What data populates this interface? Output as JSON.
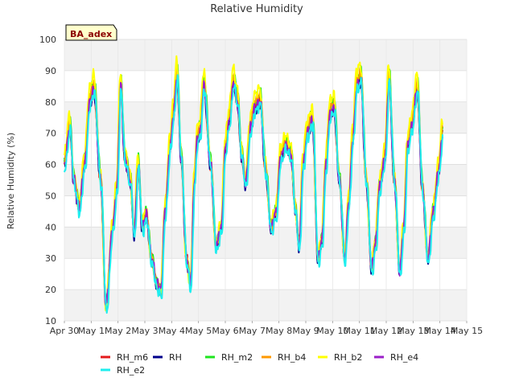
{
  "chart_data": {
    "type": "line",
    "title": "Relative Humidity",
    "ylabel": "Relative Humidity (%)",
    "xlabel": "",
    "ylim": [
      10,
      100
    ],
    "yticks": [
      10,
      20,
      30,
      40,
      50,
      60,
      70,
      80,
      90,
      100
    ],
    "xlim": [
      0,
      15
    ],
    "xticks": [
      0,
      1,
      2,
      3,
      4,
      5,
      6,
      7,
      8,
      9,
      10,
      11,
      12,
      13,
      14,
      15
    ],
    "xtick_labels": [
      "Apr 30",
      "May 1",
      "May 2",
      "May 3",
      "May 4",
      "May 5",
      "May 6",
      "May 7",
      "May 8",
      "May 9",
      "May 10",
      "May 11",
      "May 12",
      "May 13",
      "May 14",
      "May 15"
    ],
    "band_fill": "#f2f2f2",
    "grid": true,
    "legend_position": "bottom",
    "site_label": "BA_adex",
    "base_profile": {
      "x": [
        0.0,
        0.2,
        0.35,
        0.55,
        0.75,
        0.95,
        1.1,
        1.35,
        1.55,
        1.8,
        1.95,
        2.1,
        2.25,
        2.45,
        2.6,
        2.75,
        2.9,
        3.05,
        3.25,
        3.45,
        3.6,
        3.75,
        3.95,
        4.05,
        4.2,
        4.35,
        4.55,
        4.7,
        4.85,
        4.95,
        5.05,
        5.2,
        5.45,
        5.65,
        5.85,
        6.0,
        6.15,
        6.3,
        6.45,
        6.6,
        6.75,
        6.95,
        7.1,
        7.3,
        7.5,
        7.7,
        7.9,
        8.05,
        8.25,
        8.45,
        8.6,
        8.75,
        8.9,
        9.05,
        9.25,
        9.45,
        9.6,
        9.75,
        9.9,
        10.05,
        10.25,
        10.45,
        10.6,
        10.75,
        10.9,
        11.05,
        11.25,
        11.45,
        11.6,
        11.75,
        11.95,
        12.1,
        12.3,
        12.5,
        12.65,
        12.8,
        12.95,
        13.15,
        13.35,
        13.55,
        13.75,
        13.95,
        14.1
      ],
      "y": [
        60,
        72,
        55,
        46,
        60,
        80,
        84,
        55,
        15,
        40,
        52,
        85,
        62,
        55,
        38,
        60,
        40,
        44,
        30,
        22,
        20,
        45,
        66,
        75,
        88,
        62,
        30,
        22,
        55,
        68,
        70,
        85,
        60,
        34,
        40,
        65,
        74,
        86,
        80,
        63,
        54,
        72,
        78,
        80,
        58,
        40,
        45,
        62,
        66,
        63,
        46,
        34,
        60,
        70,
        74,
        30,
        36,
        60,
        76,
        78,
        55,
        30,
        48,
        68,
        85,
        87,
        55,
        27,
        35,
        53,
        62,
        87,
        55,
        26,
        40,
        66,
        72,
        84,
        52,
        30,
        45,
        58,
        70
      ]
    },
    "series": [
      {
        "name": "RH_m6",
        "color": "#e41a1c",
        "offsets": {
          "amp": 1.0,
          "shift": 0.0,
          "bias": 0.0
        }
      },
      {
        "name": "RH",
        "color": "#00008b",
        "offsets": {
          "amp": 1.0,
          "shift": 0.0,
          "bias": -0.5
        }
      },
      {
        "name": "RH_m2",
        "color": "#1ee61e",
        "offsets": {
          "amp": 1.05,
          "shift": 0.01,
          "bias": 1.5
        }
      },
      {
        "name": "RH_b4",
        "color": "#ff9900",
        "offsets": {
          "amp": 1.04,
          "shift": 0.0,
          "bias": 1.0
        }
      },
      {
        "name": "RH_b2",
        "color": "#ffff00",
        "offsets": {
          "amp": 1.08,
          "shift": -0.01,
          "bias": 2.5
        }
      },
      {
        "name": "RH_e4",
        "color": "#9b1fc9",
        "offsets": {
          "amp": 1.0,
          "shift": 0.005,
          "bias": 0.0
        }
      },
      {
        "name": "RH_e2",
        "color": "#1eeeee",
        "offsets": {
          "amp": 1.02,
          "shift": 0.02,
          "bias": -1.5
        }
      }
    ]
  }
}
